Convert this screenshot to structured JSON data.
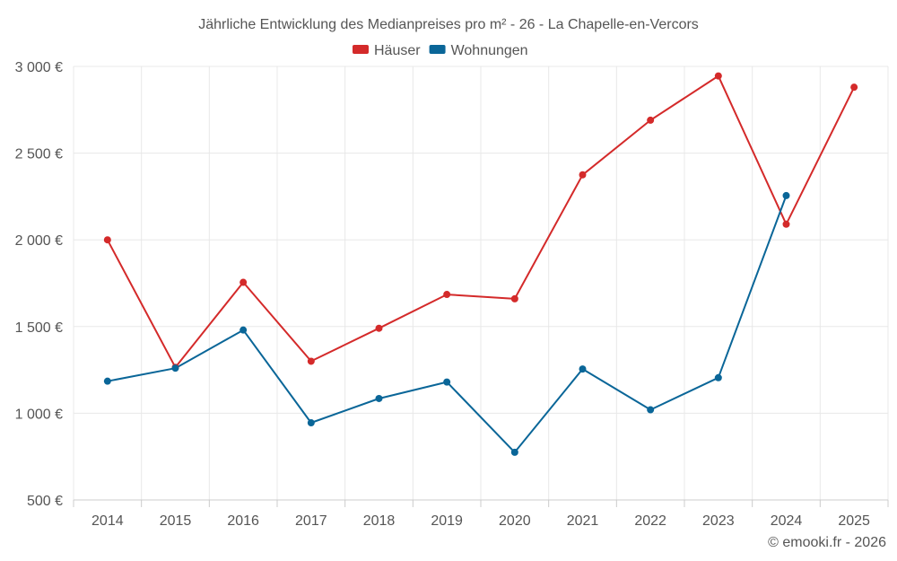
{
  "chart_data": {
    "type": "line",
    "title": "Jährliche Entwicklung des Medianpreises pro m² - 26 - La Chapelle-en-Vercors",
    "categories": [
      "2014",
      "2015",
      "2016",
      "2017",
      "2018",
      "2019",
      "2020",
      "2021",
      "2022",
      "2023",
      "2024",
      "2025"
    ],
    "series": [
      {
        "name": "Häuser",
        "color": "#d42a2a",
        "values": [
          2000,
          1265,
          1755,
          1300,
          1490,
          1685,
          1660,
          2375,
          2690,
          2945,
          2090,
          2880
        ]
      },
      {
        "name": "Wohnungen",
        "color": "#0a6698",
        "values": [
          1185,
          1260,
          1480,
          945,
          1085,
          1180,
          775,
          1255,
          1020,
          1205,
          2255,
          null
        ]
      }
    ],
    "ylim": [
      500,
      3000
    ],
    "yticks": [
      500,
      1000,
      1500,
      2000,
      2500,
      3000
    ],
    "ytick_labels": [
      "500 €",
      "1 000 €",
      "1 500 €",
      "2 000 €",
      "2 500 €",
      "3 000 €"
    ],
    "xlabel": "",
    "ylabel": "",
    "grid": true,
    "legend_position": "top-center"
  },
  "credit": "© emooki.fr - 2026"
}
